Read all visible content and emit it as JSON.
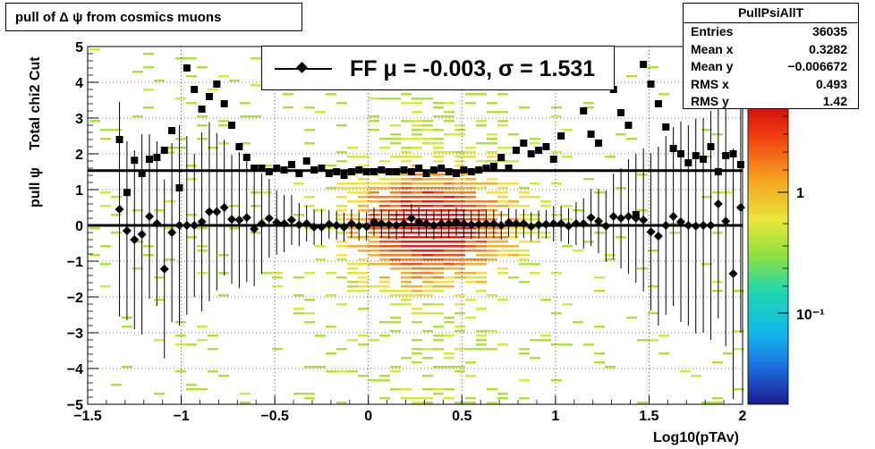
{
  "title": "pull of Δ ψ from cosmics muons",
  "colors": {
    "axis": "#000000",
    "frame": "#000000"
  },
  "stats": {
    "name": "PullPsiAllT",
    "rows": [
      {
        "label": "Entries",
        "value": "36035"
      },
      {
        "label": "Mean x",
        "value": "0.3282"
      },
      {
        "label": "Mean y",
        "value": "−0.006672"
      },
      {
        "label": "RMS x",
        "value": "0.493"
      },
      {
        "label": "RMS y",
        "value": "1.42"
      }
    ]
  },
  "legend": {
    "entry": "FF μ = -0.003, σ =   1.531"
  },
  "chart_data": {
    "type": "scatter",
    "xlabel": "Log10(pTAv)",
    "ylabel_main": "pull ψ",
    "ylabel_sub": "Total chi2 Cut",
    "xlim": [
      -1.5,
      2.0
    ],
    "ylim": [
      -5,
      5
    ],
    "x_ticks": [
      -1.5,
      -1,
      -0.5,
      0,
      0.5,
      1,
      1.5,
      2
    ],
    "x_tick_labels": [
      "−1.5",
      "−1",
      "−0.5",
      "0",
      "0.5",
      "1",
      "1.5",
      "2"
    ],
    "y_ticks": [
      -5,
      -4,
      -3,
      -2,
      -1,
      0,
      1,
      2,
      3,
      4,
      5
    ],
    "y_tick_labels": [
      "−5",
      "−4",
      "−3",
      "−2",
      "−1",
      "0",
      "1",
      "2",
      "3",
      "4",
      "5"
    ],
    "colorbar": {
      "scale": "log",
      "tick_labels": [
        "1",
        "10⁻¹"
      ]
    },
    "grid": true,
    "legend_position": "top-center",
    "fit_lines": [
      {
        "y": 0.0,
        "xlim": [
          -1.5,
          2.0
        ]
      },
      {
        "y": 1.531,
        "xlim": [
          -1.5,
          2.0
        ]
      }
    ],
    "series": [
      {
        "marker": "diamond",
        "x": [
          -1.33,
          -1.29,
          -1.25,
          -1.21,
          -1.17,
          -1.13,
          -1.09,
          -1.05,
          -1.01,
          -0.97,
          -0.93,
          -0.89,
          -0.85,
          -0.81,
          -0.77,
          -0.73,
          -0.69,
          -0.65,
          -0.61,
          -0.57,
          -0.53,
          -0.49,
          -0.45,
          -0.41,
          -0.37,
          -0.33,
          -0.29,
          -0.25,
          -0.21,
          -0.17,
          -0.13,
          -0.09,
          -0.05,
          -0.01,
          0.03,
          0.07,
          0.11,
          0.15,
          0.19,
          0.23,
          0.27,
          0.31,
          0.35,
          0.39,
          0.43,
          0.47,
          0.51,
          0.55,
          0.59,
          0.63,
          0.67,
          0.71,
          0.75,
          0.79,
          0.83,
          0.87,
          0.91,
          0.95,
          0.99,
          1.03,
          1.07,
          1.11,
          1.15,
          1.19,
          1.23,
          1.27,
          1.31,
          1.35,
          1.39,
          1.43,
          1.47,
          1.51,
          1.55,
          1.59,
          1.63,
          1.67,
          1.71,
          1.75,
          1.79,
          1.83,
          1.87,
          1.91,
          1.95,
          1.99
        ],
        "y": [
          0.45,
          -0.15,
          -0.4,
          -0.25,
          0.25,
          0.05,
          -1.22,
          -0.2,
          0.0,
          0.0,
          0.0,
          0.1,
          0.38,
          0.38,
          0.5,
          0.17,
          0.15,
          0.22,
          -0.1,
          0.05,
          0.2,
          0.08,
          0.05,
          0.15,
          0.02,
          0.05,
          -0.05,
          -0.05,
          0.03,
          0.0,
          -0.05,
          0.05,
          -0.02,
          -0.03,
          0.1,
          0.05,
          0.02,
          0.0,
          0.05,
          0.2,
          0.1,
          0.05,
          0.0,
          0.05,
          0.05,
          0.1,
          0.05,
          0.02,
          0.03,
          0.05,
          0.05,
          0.0,
          0.08,
          0.05,
          0.05,
          -0.03,
          0.02,
          0.03,
          0.05,
          0.05,
          -0.02,
          0.05,
          0.05,
          0.22,
          0.12,
          -0.02,
          0.25,
          0.2,
          0.25,
          0.2,
          0.15,
          -0.18,
          -0.3,
          0.0,
          0.25,
          0.1,
          0.0,
          -0.02,
          0.0,
          0.0,
          0.6,
          0.12,
          -1.35,
          0.5
        ],
        "yerr": [
          3.0,
          2.5,
          2.5,
          2.8,
          2.3,
          2.3,
          2.5,
          2.5,
          2.8,
          2.5,
          2.0,
          2.5,
          2.5,
          2.2,
          1.9,
          1.8,
          1.9,
          1.8,
          1.6,
          1.4,
          1.1,
          0.9,
          0.8,
          0.7,
          0.6,
          0.5,
          0.5,
          0.5,
          0.4,
          0.4,
          0.4,
          0.4,
          0.4,
          0.4,
          0.4,
          0.4,
          0.4,
          0.4,
          0.4,
          0.4,
          0.4,
          0.4,
          0.4,
          0.4,
          0.4,
          0.4,
          0.4,
          0.4,
          0.4,
          0.4,
          0.4,
          0.4,
          0.4,
          0.4,
          0.4,
          0.4,
          0.4,
          0.4,
          0.5,
          0.5,
          0.5,
          0.6,
          0.7,
          0.8,
          0.9,
          1.0,
          1.2,
          1.4,
          1.6,
          1.8,
          2.0,
          2.2,
          2.5,
          2.5,
          2.5,
          2.8,
          2.8,
          3.0,
          3.0,
          3.2,
          3.2,
          3.5,
          3.5,
          3.5
        ]
      },
      {
        "marker": "square",
        "x": [
          -1.33,
          -1.29,
          -1.25,
          -1.21,
          -1.17,
          -1.13,
          -1.09,
          -1.05,
          -1.01,
          -0.97,
          -0.93,
          -0.89,
          -0.85,
          -0.81,
          -0.77,
          -0.73,
          -0.69,
          -0.65,
          -0.61,
          -0.57,
          -0.53,
          -0.49,
          -0.45,
          -0.41,
          -0.37,
          -0.33,
          -0.29,
          -0.25,
          -0.21,
          -0.17,
          -0.13,
          -0.09,
          -0.05,
          -0.01,
          0.03,
          0.07,
          0.11,
          0.15,
          0.19,
          0.23,
          0.27,
          0.31,
          0.35,
          0.39,
          0.43,
          0.47,
          0.51,
          0.55,
          0.59,
          0.63,
          0.67,
          0.71,
          0.75,
          0.79,
          0.83,
          0.87,
          0.91,
          0.95,
          0.99,
          1.03,
          1.07,
          1.11,
          1.15,
          1.19,
          1.23,
          1.27,
          1.31,
          1.35,
          1.39,
          1.43,
          1.47,
          1.51,
          1.55,
          1.59,
          1.63,
          1.67,
          1.71,
          1.75,
          1.79,
          1.83,
          1.87,
          1.91,
          1.95,
          1.99
        ],
        "y": [
          2.4,
          0.92,
          1.82,
          1.45,
          1.85,
          1.9,
          2.1,
          2.65,
          1.05,
          4.4,
          3.8,
          3.25,
          3.6,
          3.95,
          3.4,
          2.8,
          2.2,
          1.9,
          1.6,
          1.6,
          1.5,
          1.6,
          1.55,
          1.7,
          1.45,
          1.8,
          1.55,
          1.6,
          1.45,
          1.5,
          1.4,
          1.5,
          1.55,
          1.5,
          1.5,
          1.55,
          1.5,
          1.5,
          1.55,
          1.5,
          1.6,
          1.45,
          1.55,
          1.6,
          1.5,
          1.45,
          1.55,
          1.5,
          1.55,
          1.6,
          1.65,
          1.9,
          1.6,
          2.1,
          2.3,
          2.0,
          2.1,
          2.2,
          1.85,
          2.5,
          4.0,
          4.55,
          3.2,
          2.55,
          2.3,
          4.5,
          3.8,
          3.15,
          2.8,
          0.3,
          4.5,
          3.95,
          3.4,
          2.75,
          2.15,
          2.0,
          1.75,
          1.95,
          1.85,
          2.2,
          1.5,
          1.95,
          2.0,
          1.7
        ]
      }
    ]
  }
}
